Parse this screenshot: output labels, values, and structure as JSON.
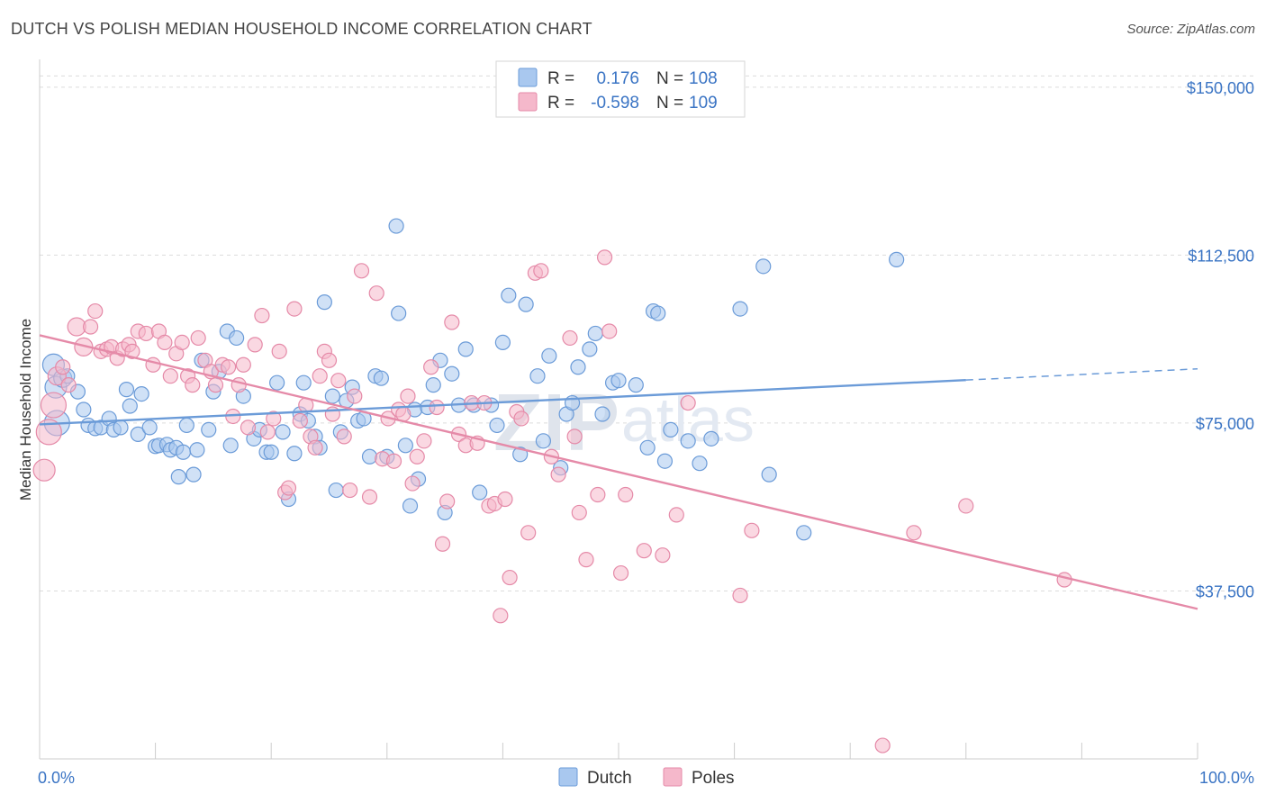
{
  "title": "DUTCH VS POLISH MEDIAN HOUSEHOLD INCOME CORRELATION CHART",
  "source": "Source: ZipAtlas.com",
  "watermark": {
    "zip": "ZIP",
    "atlas": "atlas"
  },
  "legend": {
    "rows": [
      {
        "r_label": "R =",
        "r_value": "0.176",
        "n_label": "N =",
        "n_value": "108",
        "color": "#a9c8ef",
        "stroke": "#6b9bd8"
      },
      {
        "r_label": "R =",
        "r_value": "-0.598",
        "n_label": "N =",
        "n_value": "109",
        "color": "#f5b8cb",
        "stroke": "#e58aa8"
      }
    ]
  },
  "bottom_legend": [
    {
      "label": "Dutch",
      "color": "#a9c8ef",
      "stroke": "#6b9bd8"
    },
    {
      "label": "Poles",
      "color": "#f5b8cb",
      "stroke": "#e58aa8"
    }
  ],
  "chart_data": {
    "type": "scatter",
    "title": "DUTCH VS POLISH MEDIAN HOUSEHOLD INCOME CORRELATION CHART",
    "xlabel": "",
    "ylabel": "Median Household Income",
    "xlim": [
      0,
      100
    ],
    "ylim": [
      0,
      155000
    ],
    "x_tick_labels": [
      "0.0%",
      "100.0%"
    ],
    "y_ticks": [
      37500,
      75000,
      112500,
      150000
    ],
    "y_tick_labels": [
      "$37,500",
      "$75,000",
      "$112,500",
      "$150,000"
    ],
    "grid": true,
    "legend_placement": "top-center",
    "series": [
      {
        "name": "Dutch",
        "color": "#6b9bd8",
        "fill": "#a9c8ef",
        "trend": {
          "x0": 0,
          "y0": 74700,
          "x1": 80,
          "y1": 84600,
          "dash_to_x": 100,
          "dash_to_y": 87100
        },
        "points": [
          [
            1.2,
            88000,
            12
          ],
          [
            1.4,
            83000,
            12
          ],
          [
            1.5,
            75000,
            14
          ],
          [
            2,
            85000,
            10
          ],
          [
            2.4,
            85500,
            8
          ],
          [
            3.3,
            82000,
            8
          ],
          [
            3.8,
            78000,
            8
          ],
          [
            4.2,
            74500,
            8
          ],
          [
            4.8,
            73800,
            8
          ],
          [
            5.3,
            74000,
            8
          ],
          [
            6,
            76000,
            8
          ],
          [
            6.4,
            73500,
            8
          ],
          [
            7,
            74000,
            8
          ],
          [
            7.5,
            82500,
            8
          ],
          [
            7.8,
            78800,
            8
          ],
          [
            8.5,
            72500,
            8
          ],
          [
            8.8,
            81500,
            8
          ],
          [
            9.5,
            74000,
            8
          ],
          [
            10,
            69800,
            8
          ],
          [
            10.3,
            70000,
            8
          ],
          [
            11,
            70200,
            8
          ],
          [
            11.3,
            69000,
            8
          ],
          [
            11.8,
            69500,
            8
          ],
          [
            12,
            63000,
            8
          ],
          [
            12.4,
            68500,
            8
          ],
          [
            12.7,
            74500,
            8
          ],
          [
            13.3,
            63500,
            8
          ],
          [
            13.6,
            69000,
            8
          ],
          [
            14,
            89000,
            8
          ],
          [
            14.6,
            73500,
            8
          ],
          [
            15,
            82000,
            8
          ],
          [
            15.5,
            86500,
            8
          ],
          [
            16.2,
            95500,
            8
          ],
          [
            16.5,
            70000,
            8
          ],
          [
            17,
            94000,
            8
          ],
          [
            17.6,
            81000,
            8
          ],
          [
            18.5,
            71500,
            8
          ],
          [
            19,
            73500,
            8
          ],
          [
            19.6,
            68500,
            8
          ],
          [
            20,
            68500,
            8
          ],
          [
            20.5,
            84000,
            8
          ],
          [
            21,
            73000,
            8
          ],
          [
            21.5,
            58000,
            8
          ],
          [
            22,
            68200,
            8
          ],
          [
            22.5,
            77000,
            8
          ],
          [
            22.8,
            84000,
            8
          ],
          [
            23.2,
            75500,
            8
          ],
          [
            23.8,
            72000,
            8
          ],
          [
            24.2,
            69500,
            8
          ],
          [
            24.6,
            102000,
            8
          ],
          [
            25.3,
            81000,
            8
          ],
          [
            25.6,
            60000,
            8
          ],
          [
            26,
            73000,
            8
          ],
          [
            26.5,
            80000,
            8
          ],
          [
            27,
            83000,
            8
          ],
          [
            27.5,
            75500,
            8
          ],
          [
            28,
            76000,
            8
          ],
          [
            28.5,
            67500,
            8
          ],
          [
            29,
            85500,
            8
          ],
          [
            29.5,
            85000,
            8
          ],
          [
            30,
            67500,
            8
          ],
          [
            30.8,
            119000,
            8
          ],
          [
            31,
            99500,
            8
          ],
          [
            31.6,
            70000,
            8
          ],
          [
            32,
            56500,
            8
          ],
          [
            32.4,
            78000,
            8
          ],
          [
            32.7,
            62500,
            8
          ],
          [
            33.5,
            78500,
            8
          ],
          [
            34,
            83500,
            8
          ],
          [
            34.6,
            89000,
            8
          ],
          [
            35,
            55000,
            8
          ],
          [
            35.6,
            86000,
            8
          ],
          [
            36.2,
            79000,
            8
          ],
          [
            36.8,
            91500,
            8
          ],
          [
            37.5,
            79000,
            8
          ],
          [
            38,
            59500,
            8
          ],
          [
            39,
            79000,
            8
          ],
          [
            39.5,
            74500,
            8
          ],
          [
            40,
            93000,
            8
          ],
          [
            40.5,
            103500,
            8
          ],
          [
            41.5,
            68000,
            8
          ],
          [
            42,
            101500,
            8
          ],
          [
            43,
            85500,
            8
          ],
          [
            43.5,
            71000,
            8
          ],
          [
            44,
            90000,
            8
          ],
          [
            45,
            65000,
            8
          ],
          [
            45.5,
            77000,
            8
          ],
          [
            46,
            79500,
            8
          ],
          [
            46.5,
            87500,
            8
          ],
          [
            47.5,
            91500,
            8
          ],
          [
            48,
            95000,
            8
          ],
          [
            48.6,
            77000,
            8
          ],
          [
            49.5,
            84000,
            8
          ],
          [
            50,
            84500,
            8
          ],
          [
            51.5,
            83500,
            8
          ],
          [
            52.5,
            69500,
            8
          ],
          [
            53,
            100000,
            8
          ],
          [
            53.4,
            99500,
            8
          ],
          [
            54,
            66500,
            8
          ],
          [
            54.5,
            73500,
            8
          ],
          [
            56,
            71000,
            8
          ],
          [
            57,
            66000,
            8
          ],
          [
            58,
            71500,
            8
          ],
          [
            60.5,
            100500,
            8
          ],
          [
            62.5,
            110000,
            8
          ],
          [
            63,
            63500,
            8
          ],
          [
            66,
            50500,
            8
          ],
          [
            74,
            111500,
            8
          ]
        ]
      },
      {
        "name": "Poles",
        "color": "#e58aa8",
        "fill": "#f5b8cb",
        "trend": {
          "x0": 0,
          "y0": 94600,
          "x1": 100,
          "y1": 33500
        },
        "points": [
          [
            0.4,
            64500,
            12
          ],
          [
            0.8,
            73000,
            14
          ],
          [
            1.2,
            79000,
            14
          ],
          [
            1.5,
            85500,
            10
          ],
          [
            2,
            87500,
            8
          ],
          [
            2.5,
            83500,
            8
          ],
          [
            3.2,
            96500,
            10
          ],
          [
            3.8,
            92000,
            10
          ],
          [
            4.4,
            96500,
            8
          ],
          [
            4.8,
            100000,
            8
          ],
          [
            5.3,
            91000,
            8
          ],
          [
            5.8,
            91500,
            8
          ],
          [
            6.2,
            92000,
            8
          ],
          [
            6.7,
            89500,
            8
          ],
          [
            7.2,
            91500,
            8
          ],
          [
            7.7,
            92500,
            8
          ],
          [
            8,
            91000,
            8
          ],
          [
            8.5,
            95500,
            8
          ],
          [
            9.2,
            95000,
            8
          ],
          [
            9.8,
            88000,
            8
          ],
          [
            10.3,
            95500,
            8
          ],
          [
            10.8,
            93000,
            8
          ],
          [
            11.3,
            85500,
            8
          ],
          [
            11.8,
            90500,
            8
          ],
          [
            12.3,
            93000,
            8
          ],
          [
            12.8,
            85500,
            8
          ],
          [
            13.2,
            83500,
            8
          ],
          [
            13.7,
            94000,
            8
          ],
          [
            14.3,
            89000,
            8
          ],
          [
            14.8,
            86500,
            8
          ],
          [
            15.2,
            83500,
            8
          ],
          [
            15.8,
            88000,
            8
          ],
          [
            16.3,
            87500,
            8
          ],
          [
            16.7,
            76500,
            8
          ],
          [
            17.2,
            83500,
            8
          ],
          [
            17.6,
            88000,
            8
          ],
          [
            18,
            74000,
            8
          ],
          [
            18.6,
            92500,
            8
          ],
          [
            19.2,
            99000,
            8
          ],
          [
            19.7,
            73000,
            8
          ],
          [
            20.2,
            76000,
            8
          ],
          [
            20.7,
            91000,
            8
          ],
          [
            21.2,
            59500,
            8
          ],
          [
            21.5,
            60500,
            8
          ],
          [
            22,
            100500,
            8
          ],
          [
            22.5,
            75500,
            8
          ],
          [
            23,
            79000,
            8
          ],
          [
            23.4,
            72000,
            8
          ],
          [
            23.8,
            69500,
            8
          ],
          [
            24.2,
            85500,
            8
          ],
          [
            24.6,
            91000,
            8
          ],
          [
            25,
            89000,
            8
          ],
          [
            25.3,
            77000,
            8
          ],
          [
            25.8,
            84500,
            8
          ],
          [
            26.3,
            72000,
            8
          ],
          [
            26.8,
            60000,
            8
          ],
          [
            27.2,
            81000,
            8
          ],
          [
            27.8,
            109000,
            8
          ],
          [
            28.5,
            58500,
            8
          ],
          [
            29.1,
            104000,
            8
          ],
          [
            29.6,
            67000,
            8
          ],
          [
            30.1,
            76000,
            8
          ],
          [
            30.6,
            66500,
            8
          ],
          [
            31,
            78000,
            8
          ],
          [
            31.4,
            77000,
            8
          ],
          [
            31.8,
            81000,
            8
          ],
          [
            32.2,
            61500,
            8
          ],
          [
            32.6,
            67500,
            8
          ],
          [
            33.2,
            71000,
            8
          ],
          [
            33.8,
            87500,
            8
          ],
          [
            34.3,
            78500,
            8
          ],
          [
            34.8,
            48000,
            8
          ],
          [
            35.2,
            57500,
            8
          ],
          [
            35.6,
            97500,
            8
          ],
          [
            36.2,
            72500,
            8
          ],
          [
            36.8,
            70000,
            8
          ],
          [
            37.3,
            79500,
            8
          ],
          [
            37.8,
            70500,
            8
          ],
          [
            38.4,
            79500,
            8
          ],
          [
            38.8,
            56500,
            8
          ],
          [
            39.3,
            57000,
            8
          ],
          [
            39.8,
            32000,
            8
          ],
          [
            40.2,
            58000,
            8
          ],
          [
            40.6,
            40500,
            8
          ],
          [
            41.2,
            77500,
            8
          ],
          [
            41.6,
            76000,
            8
          ],
          [
            42.2,
            50500,
            8
          ],
          [
            42.8,
            108500,
            8
          ],
          [
            43.3,
            109000,
            8
          ],
          [
            44.2,
            67500,
            8
          ],
          [
            44.8,
            63500,
            8
          ],
          [
            45.8,
            94000,
            8
          ],
          [
            46.2,
            72000,
            8
          ],
          [
            46.6,
            55000,
            8
          ],
          [
            47.2,
            44500,
            8
          ],
          [
            48.2,
            59000,
            8
          ],
          [
            48.8,
            112000,
            8
          ],
          [
            49.2,
            95500,
            8
          ],
          [
            50.2,
            41500,
            8
          ],
          [
            50.6,
            59000,
            8
          ],
          [
            52.2,
            46500,
            8
          ],
          [
            53.8,
            45500,
            8
          ],
          [
            55,
            54500,
            8
          ],
          [
            56,
            79500,
            8
          ],
          [
            60.5,
            36500,
            8
          ],
          [
            61.5,
            51000,
            8
          ],
          [
            72.8,
            3000,
            8
          ],
          [
            75.5,
            50500,
            8
          ],
          [
            80,
            56500,
            8
          ],
          [
            88.5,
            40000,
            8
          ]
        ]
      }
    ]
  }
}
